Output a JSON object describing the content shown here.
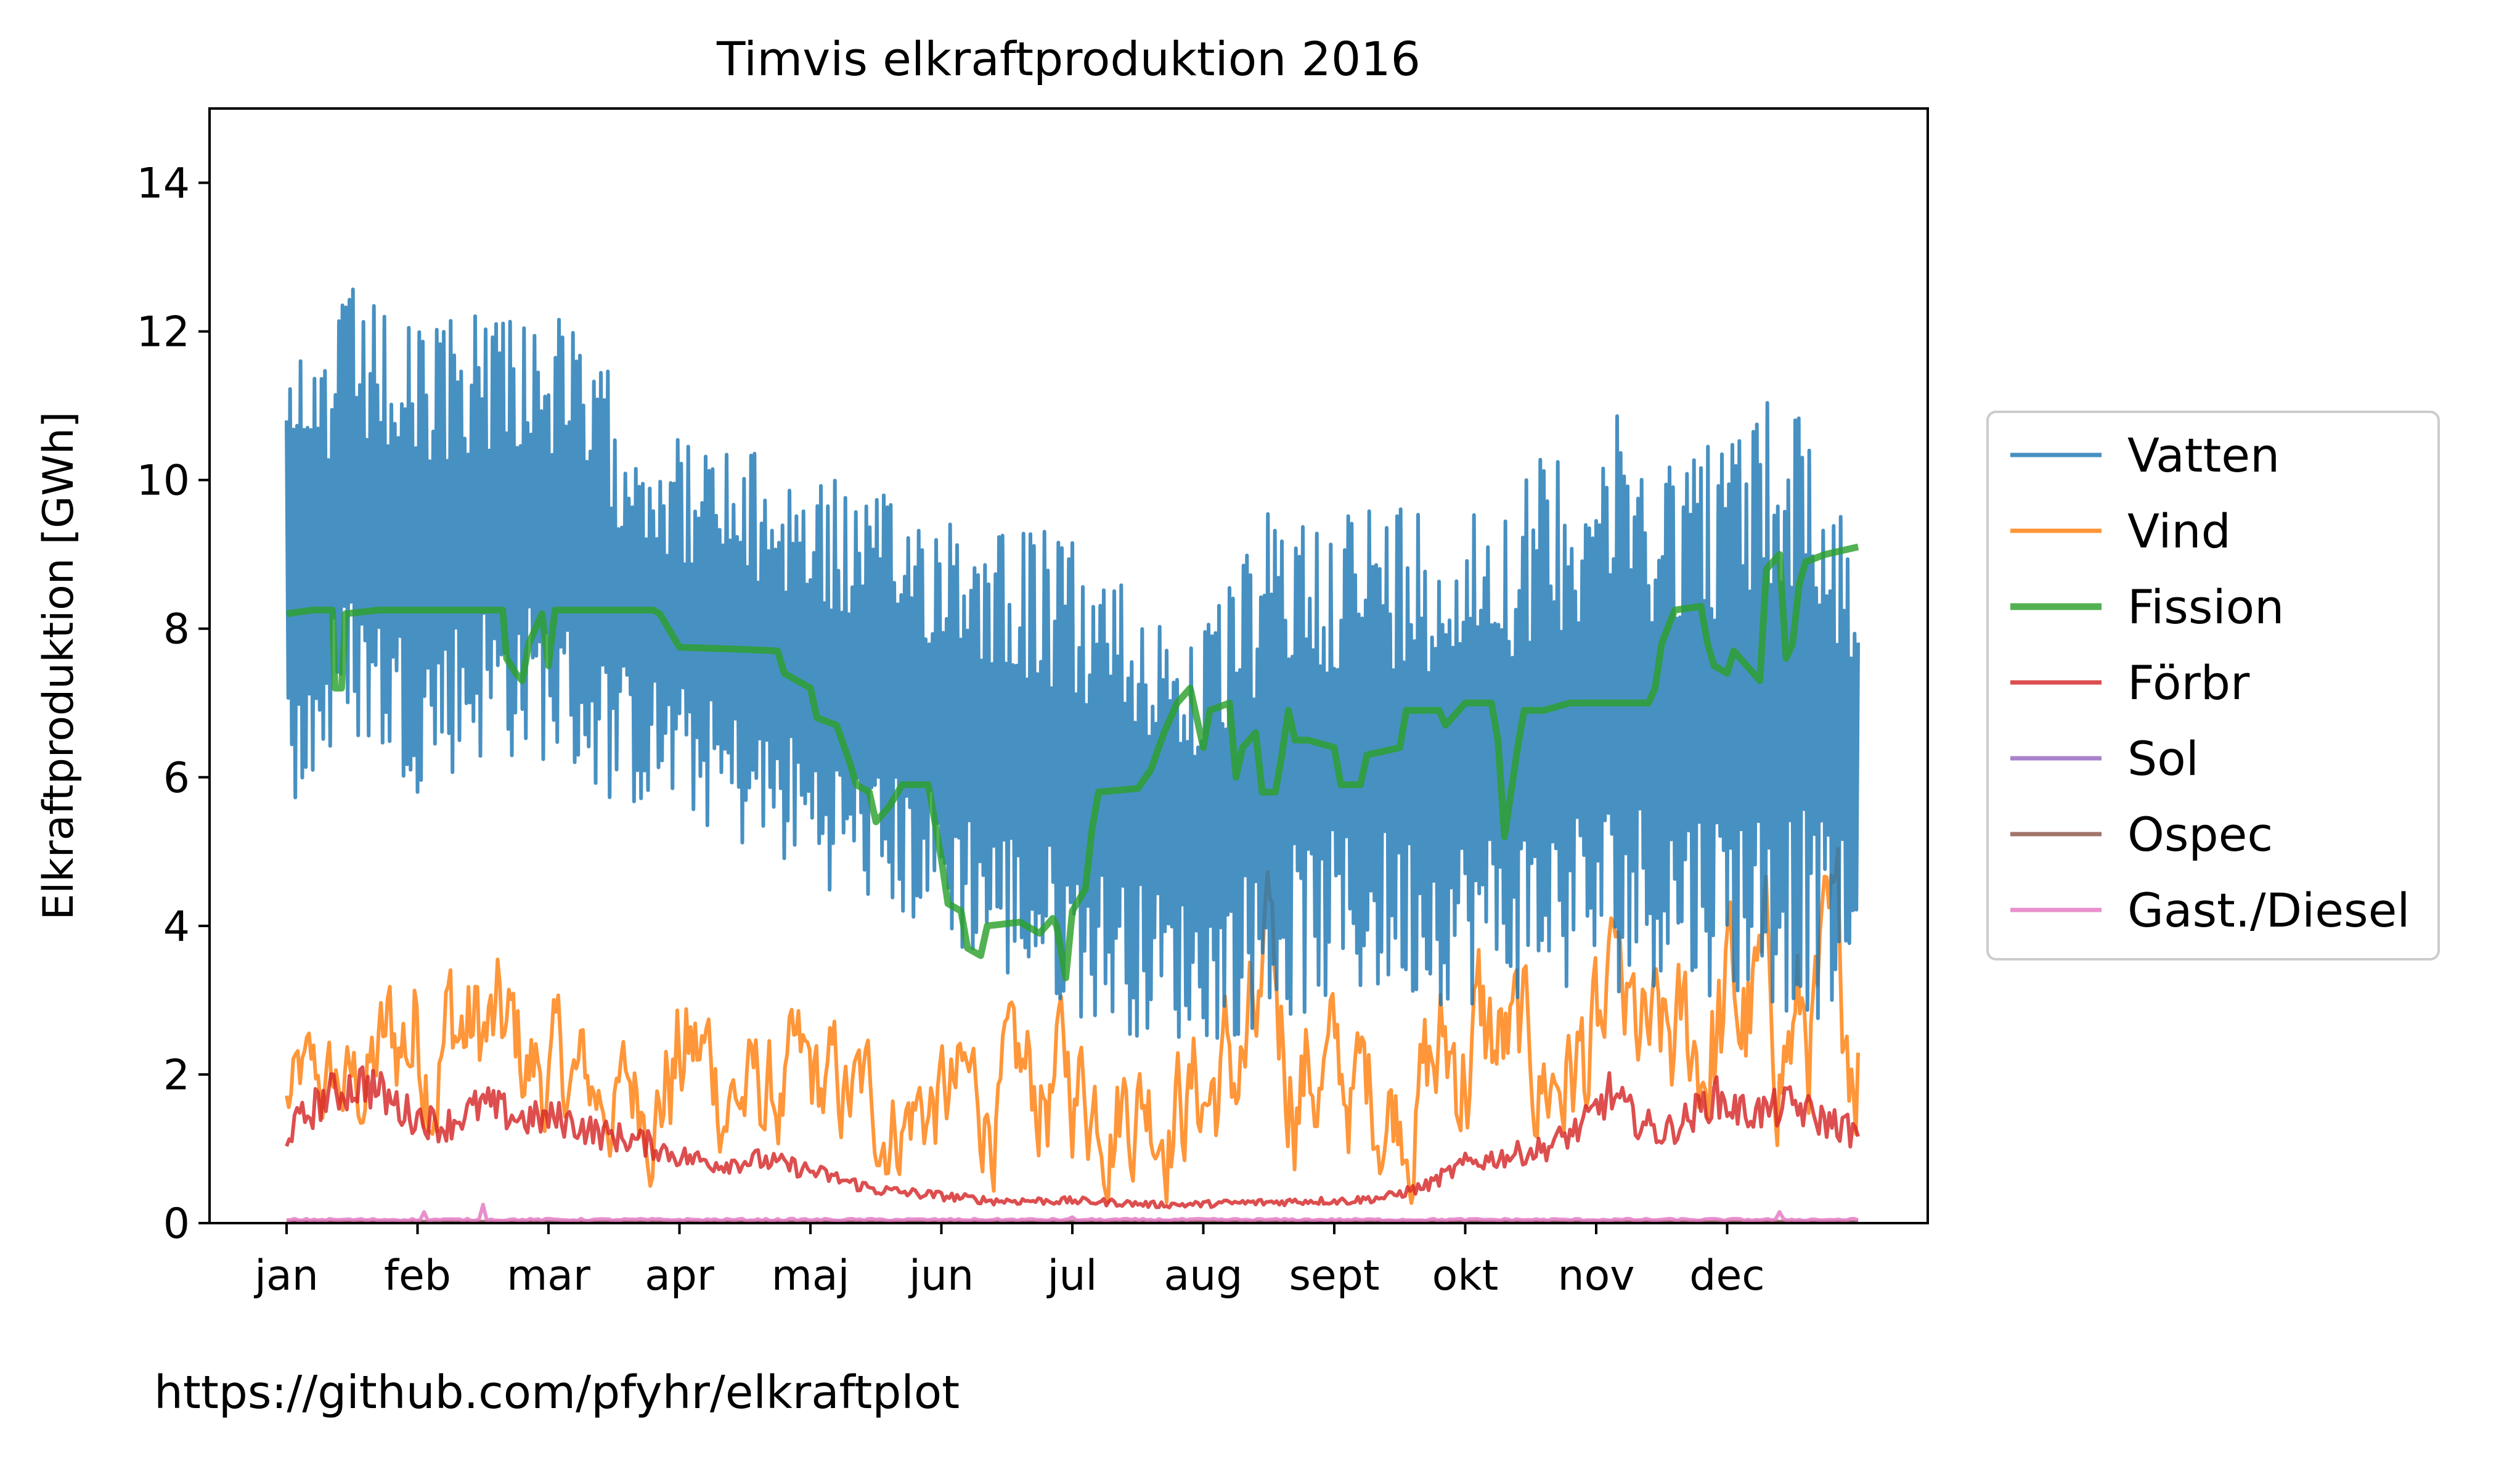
{
  "footer_text": "https://github.com/pfyhr/elkraftplot",
  "chart_data": {
    "type": "line",
    "title": "Timvis elkraftproduktion 2016",
    "xlabel": "",
    "ylabel": "Elkraftproduktion [GWh]",
    "xlim": [
      0,
      12.4
    ],
    "ylim": [
      0,
      15
    ],
    "x_unit": "month",
    "x_ticks": [
      {
        "value": 0,
        "label": "jan"
      },
      {
        "value": 1,
        "label": "feb"
      },
      {
        "value": 2,
        "label": "mar"
      },
      {
        "value": 3,
        "label": "apr"
      },
      {
        "value": 4,
        "label": "maj"
      },
      {
        "value": 5,
        "label": "jun"
      },
      {
        "value": 6,
        "label": "jul"
      },
      {
        "value": 7,
        "label": "aug"
      },
      {
        "value": 8,
        "label": "sept"
      },
      {
        "value": 9,
        "label": "okt"
      },
      {
        "value": 10,
        "label": "nov"
      },
      {
        "value": 11,
        "label": "dec"
      }
    ],
    "y_ticks": [
      0,
      2,
      4,
      6,
      8,
      10,
      12,
      14
    ],
    "grid": false,
    "legend_position": "right-outside",
    "series": [
      {
        "name": "Vatten",
        "color": "#1f77b4",
        "style": "oscillating",
        "stroke": 6,
        "x": [
          0,
          0.5,
          1,
          1.5,
          2,
          2.5,
          3,
          3.5,
          4,
          4.5,
          5,
          5.5,
          6,
          6.5,
          7,
          7.5,
          8,
          8.5,
          9,
          9.5,
          10,
          10.5,
          11,
          11.5,
          12
        ],
        "upper": [
          11.4,
          12.6,
          12.0,
          12.6,
          12.4,
          11.4,
          10.6,
          10.4,
          10.2,
          9.8,
          9.8,
          9.6,
          9.2,
          8.6,
          8.0,
          9.6,
          9.8,
          9.8,
          9.8,
          10.2,
          11.0,
          10.6,
          10.8,
          11.4,
          9.4
        ],
        "lower": [
          5.2,
          6.5,
          5.8,
          6.2,
          6.2,
          5.6,
          5.5,
          5.0,
          4.6,
          4.2,
          3.8,
          3.2,
          2.8,
          2.5,
          2.4,
          2.6,
          2.9,
          3.0,
          2.9,
          3.0,
          3.0,
          3.2,
          3.0,
          2.8,
          2.6
        ]
      },
      {
        "name": "Vind",
        "color": "#ff7f0e",
        "style": "noisy",
        "stroke": 6,
        "x": [
          0,
          0.5,
          1,
          1.5,
          2,
          2.5,
          3,
          3.5,
          4,
          4.5,
          5,
          5.5,
          6,
          6.5,
          7,
          7.5,
          8,
          8.5,
          9,
          9.5,
          10,
          10.5,
          11,
          11.5,
          12
        ],
        "upper": [
          2.8,
          3.0,
          5.0,
          4.2,
          3.4,
          2.8,
          4.2,
          3.0,
          3.2,
          2.8,
          3.0,
          3.2,
          3.6,
          3.4,
          3.4,
          4.8,
          3.4,
          3.2,
          4.8,
          3.6,
          4.2,
          3.8,
          5.2,
          4.6,
          5.4
        ],
        "lower": [
          0.8,
          0.6,
          0.7,
          0.6,
          0.4,
          0.5,
          0.3,
          0.3,
          0.2,
          0.2,
          0.2,
          0.2,
          0.2,
          0.2,
          0.1,
          0.2,
          0.2,
          0.2,
          0.2,
          0.3,
          0.3,
          0.3,
          0.4,
          0.5,
          0.6
        ]
      },
      {
        "name": "Fission",
        "color": "#2ca02c",
        "style": "step",
        "stroke": 11,
        "points": [
          [
            0,
            8.2
          ],
          [
            0.2,
            8.25
          ],
          [
            0.35,
            8.25
          ],
          [
            0.37,
            7.2
          ],
          [
            0.42,
            7.2
          ],
          [
            0.45,
            8.2
          ],
          [
            0.7,
            8.25
          ],
          [
            1.0,
            8.25
          ],
          [
            1.5,
            8.25
          ],
          [
            1.65,
            8.25
          ],
          [
            1.68,
            7.6
          ],
          [
            1.75,
            7.4
          ],
          [
            1.8,
            7.3
          ],
          [
            1.85,
            7.8
          ],
          [
            1.95,
            8.2
          ],
          [
            2.0,
            7.5
          ],
          [
            2.05,
            8.25
          ],
          [
            2.5,
            8.25
          ],
          [
            2.8,
            8.25
          ],
          [
            2.85,
            8.2
          ],
          [
            3.0,
            7.75
          ],
          [
            3.5,
            7.72
          ],
          [
            3.75,
            7.7
          ],
          [
            3.8,
            7.4
          ],
          [
            4.0,
            7.2
          ],
          [
            4.05,
            6.8
          ],
          [
            4.2,
            6.7
          ],
          [
            4.3,
            6.2
          ],
          [
            4.35,
            5.9
          ],
          [
            4.45,
            5.8
          ],
          [
            4.5,
            5.4
          ],
          [
            4.6,
            5.6
          ],
          [
            4.7,
            5.9
          ],
          [
            4.9,
            5.9
          ],
          [
            4.95,
            5.4
          ],
          [
            5.0,
            4.9
          ],
          [
            5.05,
            4.3
          ],
          [
            5.15,
            4.2
          ],
          [
            5.2,
            3.7
          ],
          [
            5.3,
            3.6
          ],
          [
            5.35,
            4.0
          ],
          [
            5.6,
            4.05
          ],
          [
            5.75,
            3.9
          ],
          [
            5.85,
            4.1
          ],
          [
            5.88,
            4.0
          ],
          [
            5.95,
            3.3
          ],
          [
            6.0,
            4.2
          ],
          [
            6.1,
            4.5
          ],
          [
            6.15,
            5.3
          ],
          [
            6.2,
            5.8
          ],
          [
            6.5,
            5.85
          ],
          [
            6.6,
            6.1
          ],
          [
            6.7,
            6.6
          ],
          [
            6.8,
            7.0
          ],
          [
            6.9,
            7.2
          ],
          [
            7.0,
            6.4
          ],
          [
            7.05,
            6.9
          ],
          [
            7.2,
            7.0
          ],
          [
            7.25,
            6.0
          ],
          [
            7.3,
            6.4
          ],
          [
            7.4,
            6.6
          ],
          [
            7.45,
            5.8
          ],
          [
            7.55,
            5.8
          ],
          [
            7.6,
            6.3
          ],
          [
            7.65,
            6.9
          ],
          [
            7.7,
            6.5
          ],
          [
            7.8,
            6.5
          ],
          [
            8.0,
            6.4
          ],
          [
            8.05,
            5.9
          ],
          [
            8.2,
            5.9
          ],
          [
            8.25,
            6.3
          ],
          [
            8.5,
            6.4
          ],
          [
            8.55,
            6.9
          ],
          [
            8.8,
            6.9
          ],
          [
            8.85,
            6.7
          ],
          [
            8.9,
            6.8
          ],
          [
            9.0,
            7.0
          ],
          [
            9.2,
            7.0
          ],
          [
            9.25,
            6.5
          ],
          [
            9.3,
            5.2
          ],
          [
            9.35,
            5.8
          ],
          [
            9.4,
            6.4
          ],
          [
            9.45,
            6.9
          ],
          [
            9.6,
            6.9
          ],
          [
            9.8,
            7.0
          ],
          [
            10.0,
            7.0
          ],
          [
            10.4,
            7.0
          ],
          [
            10.45,
            7.2
          ],
          [
            10.5,
            7.8
          ],
          [
            10.6,
            8.25
          ],
          [
            10.8,
            8.3
          ],
          [
            10.85,
            7.8
          ],
          [
            10.9,
            7.5
          ],
          [
            11.0,
            7.4
          ],
          [
            11.05,
            7.7
          ],
          [
            11.15,
            7.5
          ],
          [
            11.25,
            7.3
          ],
          [
            11.3,
            8.8
          ],
          [
            11.4,
            9.0
          ],
          [
            11.45,
            7.6
          ],
          [
            11.5,
            7.8
          ],
          [
            11.55,
            8.6
          ],
          [
            11.6,
            8.9
          ],
          [
            11.75,
            9.0
          ],
          [
            12.0,
            9.1
          ]
        ]
      },
      {
        "name": "Förbr",
        "color": "#d62728",
        "style": "noisy-smooth",
        "stroke": 6,
        "points": [
          [
            0,
            1.2
          ],
          [
            0.3,
            1.7
          ],
          [
            0.6,
            1.9
          ],
          [
            0.9,
            1.5
          ],
          [
            1.2,
            1.3
          ],
          [
            1.5,
            1.6
          ],
          [
            1.8,
            1.4
          ],
          [
            2.1,
            1.4
          ],
          [
            2.4,
            1.2
          ],
          [
            2.7,
            1.1
          ],
          [
            3.0,
            0.9
          ],
          [
            3.3,
            0.8
          ],
          [
            3.6,
            0.85
          ],
          [
            3.9,
            0.75
          ],
          [
            4.2,
            0.6
          ],
          [
            4.5,
            0.45
          ],
          [
            4.8,
            0.4
          ],
          [
            5.1,
            0.35
          ],
          [
            5.4,
            0.3
          ],
          [
            5.7,
            0.3
          ],
          [
            6.0,
            0.3
          ],
          [
            6.3,
            0.28
          ],
          [
            6.6,
            0.25
          ],
          [
            6.9,
            0.25
          ],
          [
            7.2,
            0.27
          ],
          [
            7.5,
            0.28
          ],
          [
            7.8,
            0.3
          ],
          [
            8.1,
            0.3
          ],
          [
            8.4,
            0.35
          ],
          [
            8.7,
            0.5
          ],
          [
            9.0,
            0.8
          ],
          [
            9.3,
            0.9
          ],
          [
            9.6,
            1.0
          ],
          [
            9.9,
            1.3
          ],
          [
            10.1,
            1.75
          ],
          [
            10.3,
            1.4
          ],
          [
            10.5,
            1.2
          ],
          [
            10.7,
            1.4
          ],
          [
            10.9,
            1.7
          ],
          [
            11.1,
            1.5
          ],
          [
            11.3,
            1.5
          ],
          [
            11.5,
            1.6
          ],
          [
            11.7,
            1.4
          ],
          [
            11.9,
            1.3
          ],
          [
            12.0,
            1.15
          ]
        ]
      },
      {
        "name": "Sol",
        "color": "#9467bd",
        "style": "flat",
        "stroke": 6,
        "points": [
          [
            0,
            0.0
          ],
          [
            12,
            0.0
          ]
        ]
      },
      {
        "name": "Ospec",
        "color": "#8c564b",
        "style": "flat",
        "stroke": 6,
        "points": [
          [
            0,
            0.02
          ],
          [
            12,
            0.02
          ]
        ]
      },
      {
        "name": "Gast./Diesel",
        "color": "#e377c2",
        "style": "flat-spikes",
        "stroke": 6,
        "points": [
          [
            0,
            0.04
          ],
          [
            1.05,
            0.15
          ],
          [
            1.5,
            0.25
          ],
          [
            6.0,
            0.08
          ],
          [
            11.4,
            0.15
          ],
          [
            12,
            0.04
          ]
        ]
      }
    ]
  }
}
